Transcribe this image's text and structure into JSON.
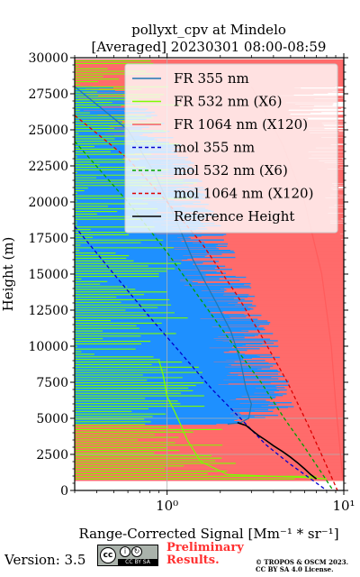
{
  "chart_data": {
    "type": "line",
    "title": "pollyxt_cpv at Mindelo",
    "subtitle": "[Averaged] 20230301 08:00-08:59",
    "xlabel": "Range-Corrected Signal [Mm⁻¹ * sr⁻¹]",
    "ylabel": "Height (m)",
    "xscale": "log",
    "xlim": [
      0.3,
      10
    ],
    "ylim": [
      0,
      30000
    ],
    "grid": true,
    "legend_position": "top-right",
    "x_tick_labels": [
      "10⁰",
      "10¹"
    ],
    "y_ticks": [
      0,
      2500,
      5000,
      7500,
      10000,
      12500,
      15000,
      17500,
      20000,
      22500,
      25000,
      27500,
      30000
    ],
    "series": [
      {
        "name": "FR 355 nm",
        "style": "solid",
        "color": "#1f77b4",
        "x": [
          0.3,
          0.6,
          0.85,
          1.1,
          1.4,
          1.9,
          2.3,
          2.6,
          2.8,
          3.0,
          2.9,
          2.6,
          2.2
        ],
        "y": [
          28000,
          25000,
          22000,
          19000,
          16000,
          13000,
          11000,
          9000,
          7000,
          6000,
          5000,
          4700,
          4600
        ]
      },
      {
        "name": "FR 532 nm (X6)",
        "style": "solid",
        "color": "#7cfc00",
        "x": [
          0.9,
          0.95,
          1.0,
          1.1,
          1.2,
          1.3,
          1.55,
          2.2,
          6.0,
          8.0
        ],
        "y": [
          9000,
          8000,
          6500,
          5500,
          4500,
          3500,
          2000,
          1100,
          900,
          800
        ]
      },
      {
        "name": "FR 1064 nm (X120)",
        "style": "solid",
        "color": "#ff5c5c",
        "x": [
          3.0,
          4.5,
          6.0,
          7.5,
          8.5,
          9.0,
          9.5,
          9.8,
          10.0
        ],
        "y": [
          28000,
          24000,
          20000,
          15000,
          10000,
          6000,
          3000,
          1200,
          700
        ]
      },
      {
        "name": "mol 355 nm",
        "style": "dashed",
        "color": "#0000cd",
        "x": [
          0.3,
          0.5,
          0.8,
          1.2,
          1.8,
          2.6,
          3.6,
          5.0,
          6.5,
          8.0
        ],
        "y": [
          18300,
          15000,
          12000,
          9500,
          7000,
          5000,
          3200,
          1800,
          800,
          0
        ]
      },
      {
        "name": "mol 532 nm (X6)",
        "style": "dashed",
        "color": "#00a000",
        "x": [
          0.3,
          0.6,
          1.0,
          1.6,
          2.4,
          3.4,
          4.6,
          6.0,
          7.5,
          8.7
        ],
        "y": [
          24200,
          20000,
          16500,
          13000,
          10000,
          7500,
          5000,
          3000,
          1200,
          0
        ]
      },
      {
        "name": "mol 1064 nm (X120)",
        "style": "dashed",
        "color": "#dd0000",
        "x": [
          0.3,
          0.6,
          1.0,
          1.6,
          2.5,
          3.5,
          4.8,
          6.3,
          7.8,
          9.2
        ],
        "y": [
          26000,
          23000,
          20000,
          17000,
          13500,
          10500,
          7500,
          4500,
          2000,
          0
        ]
      },
      {
        "name": "Reference Height",
        "style": "solid",
        "color": "#000000",
        "x": [
          2.5,
          2.8,
          3.0,
          3.3,
          3.6,
          4.0,
          4.5,
          5.0,
          5.5,
          6.0,
          6.5,
          7.0
        ],
        "y": [
          4700,
          4500,
          4200,
          3800,
          3500,
          3100,
          2700,
          2300,
          1900,
          1500,
          1100,
          800
        ]
      }
    ]
  },
  "footer": {
    "version": "Version: 3.5",
    "license_badge": "CC BY SA",
    "preliminary_line1": "Preliminary",
    "preliminary_line2": "Results.",
    "copyright_line1": "© TROPOS & OSCM 2023.",
    "copyright_line2": "CC BY SA 4.0 License."
  }
}
